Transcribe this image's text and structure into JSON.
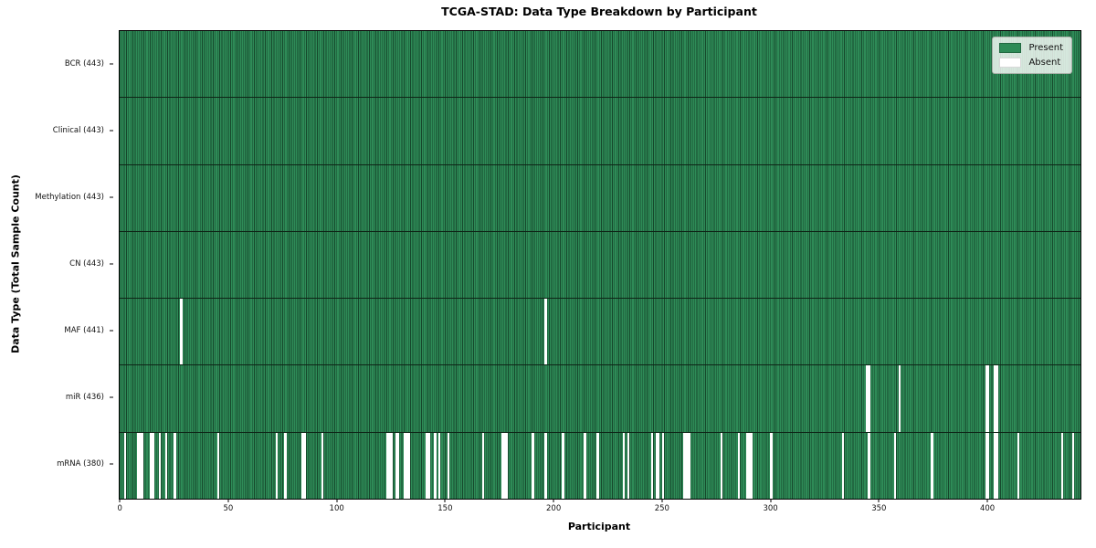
{
  "title": "TCGA-STAD: Data Type Breakdown by Participant",
  "chart_data": {
    "type": "heatmap",
    "title": "TCGA-STAD: Data Type Breakdown by Participant",
    "xlabel": "Participant",
    "ylabel": "Data Type (Total Sample Count)",
    "n_participants": 443,
    "x_ticks": [
      0,
      50,
      100,
      150,
      200,
      250,
      300,
      350,
      400
    ],
    "grid": false,
    "legend_position": "upper right",
    "colors": {
      "present": "#2e8b57",
      "bar_edge": "#16482c",
      "absent": "#ffffff",
      "row_divider": "#0e2416"
    },
    "legend": [
      {
        "label": "Present",
        "color": "#2e8b57"
      },
      {
        "label": "Absent",
        "color": "#ffffff"
      }
    ],
    "rows": [
      {
        "label": "BCR (443)",
        "name": "bcr",
        "total": 443,
        "absent": []
      },
      {
        "label": "Clinical (443)",
        "name": "clinical",
        "total": 443,
        "absent": []
      },
      {
        "label": "Methylation (443)",
        "name": "methylation",
        "total": 443,
        "absent": []
      },
      {
        "label": "CN (443)",
        "name": "cn",
        "total": 443,
        "absent": []
      },
      {
        "label": "MAF (441)",
        "name": "maf",
        "total": 441,
        "absent": [
          28,
          196
        ]
      },
      {
        "label": "miR (436)",
        "name": "mir",
        "total": 436,
        "absent": [
          344,
          345,
          359,
          399,
          400,
          403,
          404
        ]
      },
      {
        "label": "mRNA (380)",
        "name": "mrna",
        "total": 380,
        "absent": [
          2,
          8,
          9,
          10,
          14,
          15,
          18,
          21,
          25,
          45,
          72,
          76,
          84,
          85,
          93,
          123,
          124,
          125,
          127,
          128,
          131,
          132,
          133,
          141,
          142,
          145,
          147,
          151,
          167,
          176,
          177,
          178,
          190,
          196,
          204,
          214,
          220,
          232,
          234,
          245,
          247,
          248,
          250,
          260,
          261,
          262,
          277,
          285,
          289,
          290,
          291,
          300,
          333,
          345,
          357,
          374,
          399,
          400,
          403,
          404,
          414,
          434,
          439
        ]
      }
    ]
  }
}
